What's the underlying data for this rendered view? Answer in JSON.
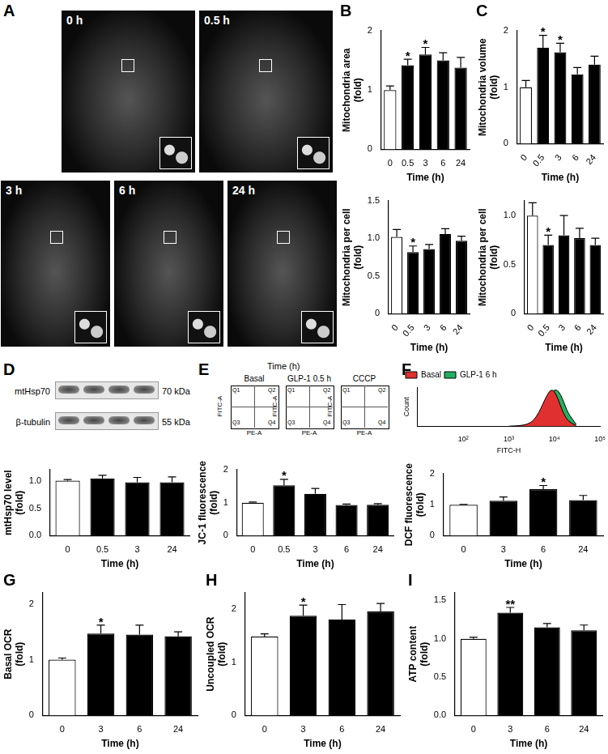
{
  "images": {
    "panel": "A",
    "frames": [
      "0 h",
      "0.5 h",
      "3 h",
      "6 h",
      "24 h"
    ]
  },
  "blot": {
    "panel": "D",
    "rows": [
      {
        "label": "mtHsp70",
        "size": "70 kDa"
      },
      {
        "label": "β-tubulin",
        "size": "55 kDa"
      }
    ]
  },
  "flow_plots": {
    "panel": "E",
    "header": "Time (h)",
    "titles": [
      "Basal",
      "GLP-1 0.5 h",
      "CCCP"
    ],
    "x_label": "PE-A",
    "y_label": "FITC-A",
    "quadrants": [
      "Q1",
      "Q2",
      "Q3",
      "Q4"
    ]
  },
  "chart_data": [
    {
      "type": "bar",
      "panel": "B",
      "categories": [
        "0",
        "0.5",
        "3",
        "6",
        "24"
      ],
      "values": [
        1.0,
        1.42,
        1.6,
        1.5,
        1.38
      ],
      "errors": [
        0.07,
        0.1,
        0.12,
        0.13,
        0.17
      ],
      "significance": [
        null,
        "*",
        "*",
        null,
        null
      ],
      "colors": [
        "#ffffff",
        "#000000",
        "#000000",
        "#000000",
        "#000000"
      ],
      "x_label": "Time (h)",
      "y_label": [
        "Mitochondria area",
        "(fold)"
      ],
      "ylim": [
        0,
        2
      ],
      "yticks": [
        0,
        1,
        2
      ]
    },
    {
      "type": "bar",
      "categories": [
        "0",
        "0.5",
        "3",
        "6",
        "24"
      ],
      "values": [
        1.02,
        0.82,
        0.86,
        1.06,
        0.97
      ],
      "errors": [
        0.1,
        0.08,
        0.06,
        0.07,
        0.06
      ],
      "significance": [
        null,
        "*",
        null,
        null,
        null
      ],
      "colors": [
        "#ffffff",
        "#000000",
        "#000000",
        "#000000",
        "#000000"
      ],
      "x_label": "Time (h)",
      "y_label": [
        "Mitochondria per cell",
        "(fold)"
      ],
      "ylim": [
        0,
        1.5
      ],
      "yticks": [
        0,
        0.5,
        {
          "value": 1,
          "label": "1.0"
        },
        1.5
      ]
    },
    {
      "type": "bar",
      "panel": "C",
      "categories": [
        "0",
        "0.5",
        "3",
        "6",
        "24"
      ],
      "values": [
        1.0,
        1.7,
        1.62,
        1.23,
        1.4
      ],
      "errors": [
        0.12,
        0.22,
        0.16,
        0.12,
        0.15
      ],
      "significance": [
        null,
        "*",
        "*",
        null,
        null
      ],
      "colors": [
        "#ffffff",
        "#000000",
        "#000000",
        "#000000",
        "#000000"
      ],
      "x_label": "Time (h)",
      "y_label": [
        "Mitochondria volume",
        "(fold)"
      ],
      "ylim": [
        0,
        2
      ],
      "yticks": [
        0,
        1,
        2
      ]
    },
    {
      "type": "bar",
      "categories": [
        "0",
        "0.5",
        "3",
        "6",
        "24"
      ],
      "values": [
        1.0,
        0.7,
        0.8,
        0.77,
        0.7
      ],
      "errors": [
        0.13,
        0.1,
        0.2,
        0.1,
        0.07
      ],
      "significance": [
        null,
        "*",
        null,
        null,
        null
      ],
      "colors": [
        "#ffffff",
        "#000000",
        "#000000",
        "#000000",
        "#000000"
      ],
      "x_label": "Time (h)",
      "y_label": [
        "Mitochondria per cell",
        "(fold)"
      ],
      "ylim": [
        0,
        1.15
      ],
      "yticks": [
        0,
        0.5,
        {
          "value": 1,
          "label": "1.0"
        }
      ]
    },
    {
      "type": "bar",
      "categories": [
        "0",
        "0.5",
        "3",
        "24"
      ],
      "values": [
        1.0,
        1.04,
        0.97,
        0.97
      ],
      "errors": [
        0.02,
        0.06,
        0.09,
        0.1
      ],
      "colors": [
        "#ffffff",
        "#000000",
        "#000000",
        "#000000"
      ],
      "x_label": "Time (h)",
      "y_label": [
        "mtHsp70 level",
        "(fold)"
      ],
      "ylim": [
        0,
        1.2
      ],
      "yticks": [
        {
          "value": 0,
          "label": "0.0"
        },
        0.5,
        {
          "value": 1,
          "label": "1.0"
        }
      ]
    },
    {
      "type": "bar",
      "categories": [
        "0",
        "0.5",
        "3",
        "6",
        "24"
      ],
      "values": [
        1.0,
        1.53,
        1.27,
        0.93,
        0.94
      ],
      "errors": [
        0.02,
        0.18,
        0.16,
        0.03,
        0.03
      ],
      "significance": [
        null,
        "*",
        null,
        null,
        null
      ],
      "colors": [
        "#ffffff",
        "#000000",
        "#000000",
        "#000000",
        "#000000"
      ],
      "x_label": "Time (h)",
      "y_label": [
        "JC-1 fluorescence",
        "(fold)"
      ],
      "ylim": [
        0,
        2
      ],
      "yticks": [
        0,
        1,
        2
      ]
    },
    {
      "type": "area",
      "panel": "F",
      "x": [
        1000,
        2000,
        3000,
        4000,
        5000,
        6000,
        7000,
        8000,
        9000,
        10000,
        12000,
        15000,
        20000,
        30000
      ],
      "series": [
        {
          "name": "Basal",
          "color": "#e03030",
          "values": [
            0,
            3,
            10,
            25,
            45,
            65,
            80,
            90,
            92,
            88,
            70,
            40,
            15,
            2
          ]
        },
        {
          "name": "GLP-1 6 h",
          "color": "#22b060",
          "values": [
            0,
            1,
            4,
            10,
            22,
            38,
            55,
            72,
            85,
            92,
            90,
            70,
            35,
            5
          ]
        }
      ],
      "log": "x",
      "x_label": "FITC-H",
      "y_label": "Count",
      "xlim": [
        10,
        100000
      ],
      "xticks": [
        {
          "value": 100,
          "label": "10²"
        },
        {
          "value": 1000,
          "label": "10³"
        },
        {
          "value": 10000,
          "label": "10⁴"
        },
        {
          "value": 100000,
          "label": "10⁵"
        }
      ],
      "ylim": [
        0,
        100
      ],
      "tick_labels": "x",
      "legend": "top-left"
    },
    {
      "type": "bar",
      "categories": [
        "0",
        "3",
        "6",
        "24"
      ],
      "values": [
        1.0,
        1.13,
        1.5,
        1.15
      ],
      "errors": [
        0.01,
        0.12,
        0.12,
        0.15
      ],
      "significance": [
        null,
        null,
        "*",
        null
      ],
      "colors": [
        "#ffffff",
        "#000000",
        "#000000",
        "#000000"
      ],
      "x_label": "Time (h)",
      "y_label": [
        "DCF fluorescence",
        "(fold)"
      ],
      "ylim": [
        0,
        2
      ],
      "yticks": [
        0,
        1,
        2
      ]
    },
    {
      "type": "bar",
      "panel": "G",
      "categories": [
        "0",
        "3",
        "6",
        "24"
      ],
      "values": [
        1.0,
        1.47,
        1.45,
        1.42
      ],
      "errors": [
        0.03,
        0.15,
        0.17,
        0.08
      ],
      "significance": [
        null,
        "*",
        null,
        null
      ],
      "colors": [
        "#ffffff",
        "#000000",
        "#000000",
        "#000000"
      ],
      "x_label": "Time (h)",
      "y_label": [
        "Basal OCR",
        "(fold)"
      ],
      "ylim": [
        0,
        2.2
      ],
      "yticks": [
        0,
        1,
        2
      ]
    },
    {
      "type": "bar",
      "panel": "H",
      "categories": [
        "0",
        "3",
        "6",
        "24"
      ],
      "values": [
        1.48,
        1.87,
        1.8,
        1.95
      ],
      "errors": [
        0.05,
        0.2,
        0.28,
        0.15
      ],
      "significance": [
        null,
        "*",
        null,
        null
      ],
      "colors": [
        "#ffffff",
        "#000000",
        "#000000",
        "#000000"
      ],
      "x_label": "Time (h)",
      "y_label": [
        "Uncoupled OCR",
        "(fold)"
      ],
      "ylim": [
        0,
        2.3
      ],
      "yticks": [
        0,
        1,
        2
      ]
    },
    {
      "type": "bar",
      "panel": "I",
      "categories": [
        "0",
        "3",
        "6",
        "24"
      ],
      "values": [
        1.0,
        1.34,
        1.15,
        1.11
      ],
      "errors": [
        0.02,
        0.07,
        0.05,
        0.07
      ],
      "significance": [
        null,
        "**",
        null,
        null
      ],
      "colors": [
        "#ffffff",
        "#000000",
        "#000000",
        "#000000"
      ],
      "x_label": "Time (h)",
      "y_label": [
        "ATP content",
        "(fold)"
      ],
      "ylim": [
        0,
        1.6
      ],
      "yticks": [
        {
          "value": 0,
          "label": "0.0"
        },
        0.5,
        {
          "value": 1,
          "label": "1.0"
        },
        1.5
      ]
    }
  ]
}
